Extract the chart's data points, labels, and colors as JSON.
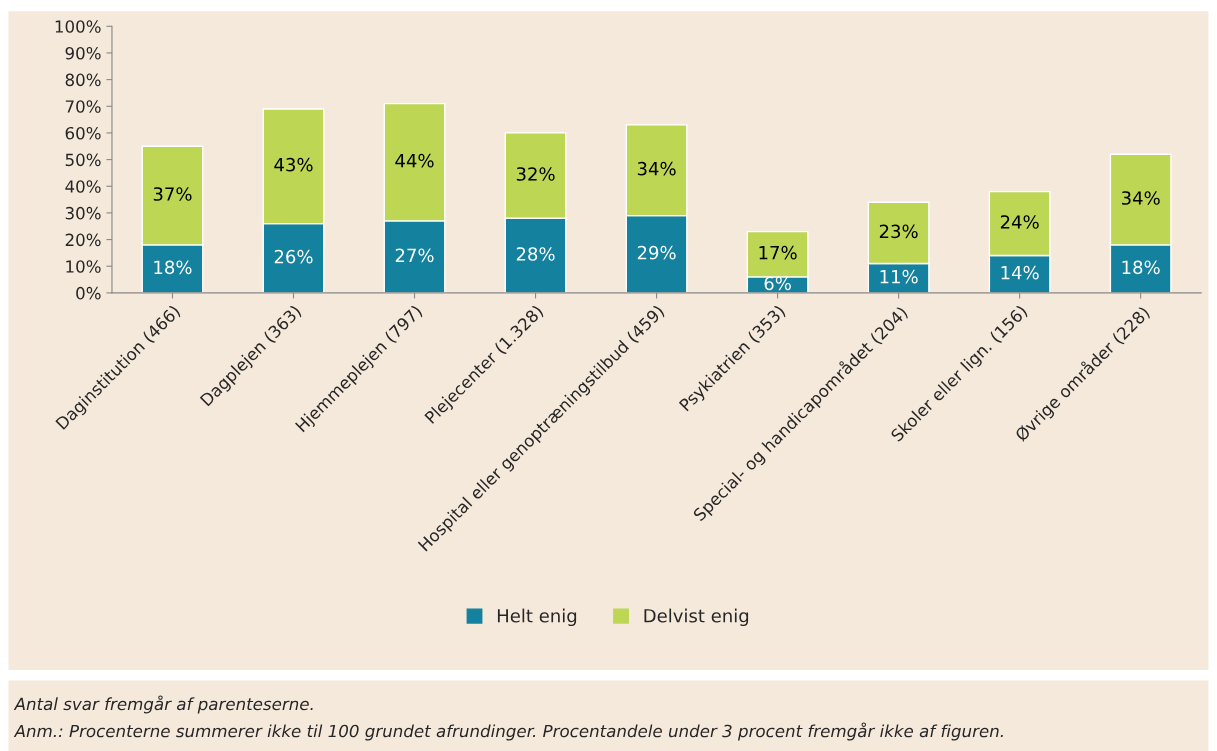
{
  "chart_data": {
    "type": "bar",
    "stacked": true,
    "categories": [
      "Daginstitution (466)",
      "Dagplejen (363)",
      "Hjemmeplejen (797)",
      "Plejecenter (1.328)",
      "Hospital eller genoptræningstilbud (459)",
      "Psykiatrien (353)",
      "Special- og handicapområdet (204)",
      "Skoler eller lign. (156)",
      "Øvrige områder (228)"
    ],
    "series": [
      {
        "name": "Helt enig",
        "color": "#14819e",
        "values": [
          18,
          26,
          27,
          28,
          29,
          6,
          11,
          14,
          18
        ],
        "value_labels": [
          "18%",
          "26%",
          "27%",
          "28%",
          "29%",
          "6%",
          "11%",
          "14%",
          "18%"
        ]
      },
      {
        "name": "Delvist enig",
        "color": "#bdd654",
        "values": [
          37,
          43,
          44,
          32,
          34,
          17,
          23,
          24,
          34
        ],
        "value_labels": [
          "37%",
          "43%",
          "44%",
          "32%",
          "34%",
          "17%",
          "23%",
          "24%",
          "34%"
        ]
      }
    ],
    "ylim": [
      0,
      100
    ],
    "yticks": [
      {
        "value": 0,
        "label": "0%"
      },
      {
        "value": 10,
        "label": "10%"
      },
      {
        "value": 20,
        "label": "20%"
      },
      {
        "value": 30,
        "label": "30%"
      },
      {
        "value": 40,
        "label": "40%"
      },
      {
        "value": 50,
        "label": "50%"
      },
      {
        "value": 60,
        "label": "60%"
      },
      {
        "value": 70,
        "label": "70%"
      },
      {
        "value": 80,
        "label": "80%"
      },
      {
        "value": 90,
        "label": "90%"
      },
      {
        "value": 100,
        "label": "100%"
      }
    ],
    "grid": false,
    "legend": "bottom",
    "annotations": [
      "Antal svar fremgår af parenteserne.",
      "Anm.: Procenterne summerer ikke til 100 grundet afrundinger. Procentandele under 3 procent fremgår ikke af figuren."
    ]
  }
}
